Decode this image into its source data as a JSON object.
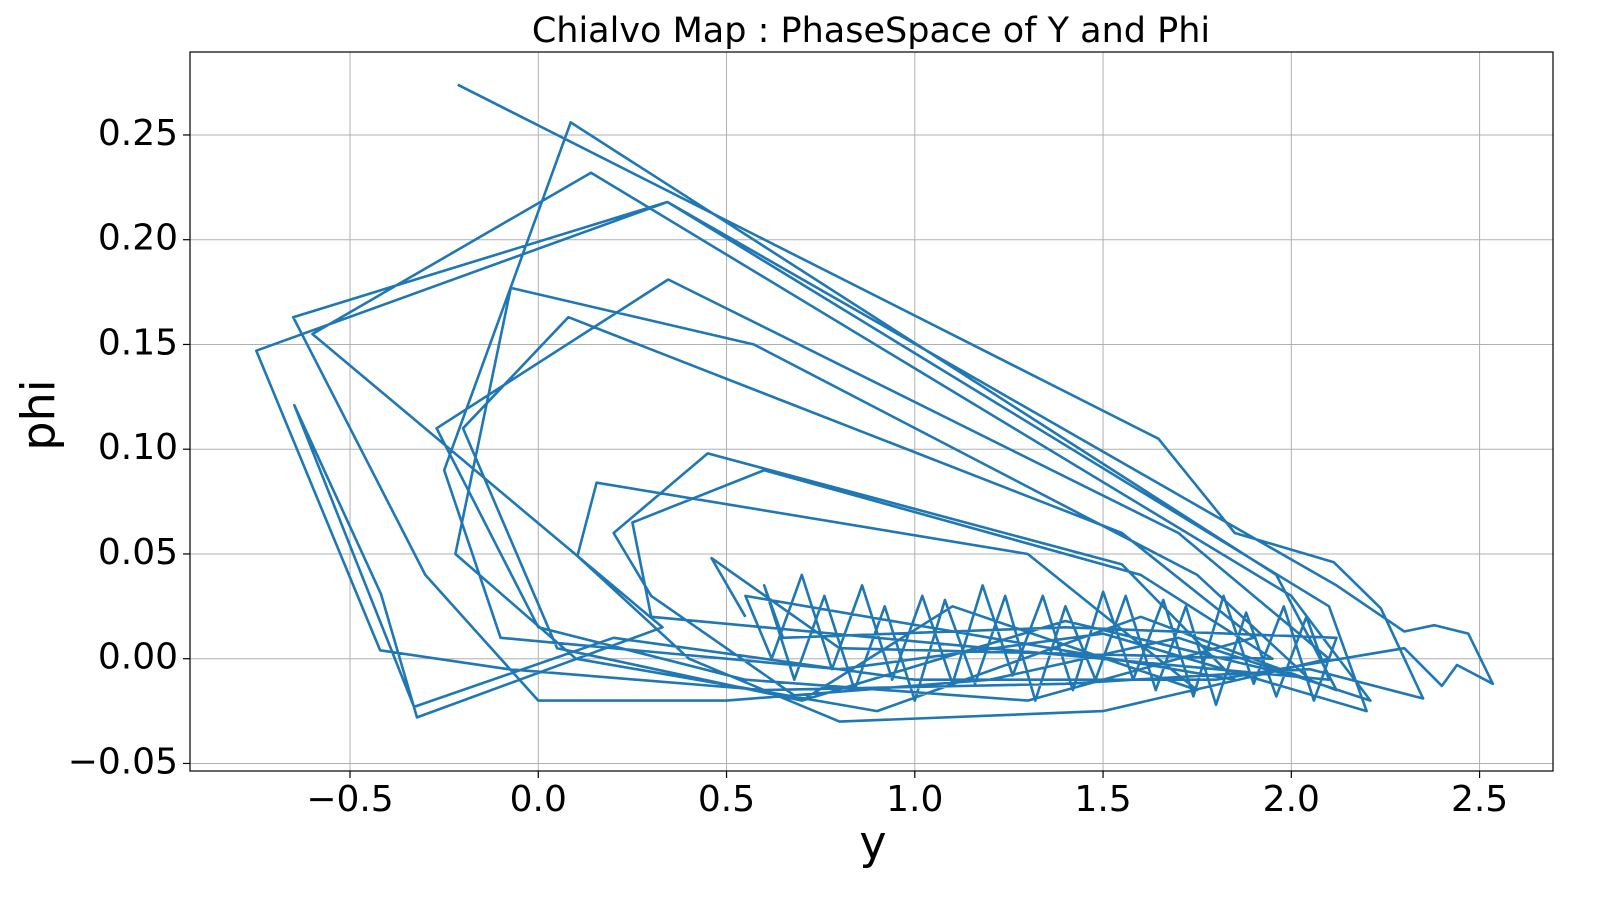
{
  "chart_data": {
    "type": "line",
    "title": "Chialvo Map : PhaseSpace of Y and Phi",
    "x_label": "y",
    "y_label": "phi",
    "xlim": [
      -0.925,
      2.695
    ],
    "ylim": [
      -0.0536,
      0.2896
    ],
    "xticks": [
      {
        "value": -0.5,
        "label": "−0.5"
      },
      {
        "value": 0,
        "label": "0.0"
      },
      0.5,
      {
        "value": 1,
        "label": "1.0"
      },
      1.5,
      {
        "value": 2,
        "label": "2.0"
      },
      2.5
    ],
    "yticks": [
      {
        "value": -0.05,
        "label": "−0.05"
      },
      {
        "value": 0,
        "label": "0.00"
      },
      0.05,
      {
        "value": 0.1,
        "label": "0.10"
      },
      0.15,
      {
        "value": 0.2,
        "label": "0.20"
      },
      0.25
    ],
    "grid": true,
    "series": [
      {
        "color": "#1f77b4",
        "x": [
          -0.214,
          1.647,
          1.85,
          2.113,
          2.238,
          2.35,
          2.05,
          1.4,
          0.6,
          -0.08,
          -0.42,
          -0.749,
          0.343,
          2.12,
          2.3,
          2.38,
          2.47,
          2.535,
          2.44,
          2.4,
          2.3,
          1.8,
          1.0,
          0.2,
          -0.33,
          -0.648,
          -0.418,
          -0.322,
          0.33,
          -0.6,
          0.14,
          2.0,
          2.21,
          1.7,
          1.2,
          0.5,
          0.0,
          -0.3,
          -0.651,
          0.343,
          2.1,
          2.2,
          1.5,
          0.8,
          -0.1,
          -0.25,
          0.086,
          1.96,
          2.12,
          1.6,
          0.9,
          0.1,
          -0.22,
          -0.073,
          0.573,
          1.75,
          2.05,
          1.4,
          0.7,
          0.05,
          -0.2,
          0.08,
          1.55,
          1.9,
          1.3,
          0.55,
          0.0,
          -0.27,
          0.345,
          1.7,
          2.1,
          1.5,
          0.8,
          0.4,
          0.104,
          0.155,
          1.3,
          1.75,
          1.1,
          0.7,
          0.3,
          0.2,
          0.45,
          1.55,
          1.85,
          0.55,
          0.62,
          0.7,
          0.78,
          0.86,
          0.94,
          1.02,
          1.1,
          1.18,
          1.26,
          1.34,
          1.42,
          1.5,
          1.58,
          1.66,
          1.74,
          1.82,
          1.9,
          1.98,
          2.06,
          2.12,
          1.4,
          0.65,
          0.6,
          0.68,
          0.76,
          0.84,
          0.92,
          1.0,
          1.08,
          1.16,
          1.24,
          1.32,
          1.4,
          1.48,
          1.56,
          1.64,
          1.72,
          1.8,
          1.88,
          1.96,
          2.04,
          2.1,
          0.9,
          0.3,
          0.25,
          0.6,
          1.6,
          1.95,
          0.8,
          0.46,
          0.55
        ],
        "values": [
          0.274,
          0.105,
          0.06,
          0.046,
          0.024,
          -0.019,
          -0.005,
          -0.012,
          -0.015,
          -0.005,
          0.004,
          0.147,
          0.218,
          0.035,
          0.013,
          0.016,
          0.012,
          -0.012,
          -0.003,
          -0.013,
          0.005,
          -0.01,
          -0.01,
          0.01,
          -0.023,
          0.121,
          0.031,
          -0.028,
          0.015,
          0.155,
          0.232,
          0.03,
          -0.02,
          0.01,
          -0.01,
          -0.02,
          -0.02,
          0.04,
          0.163,
          0.218,
          0.025,
          -0.025,
          0.012,
          -0.005,
          0.01,
          0.09,
          0.256,
          0.04,
          -0.015,
          0.02,
          -0.025,
          0.0,
          0.05,
          0.177,
          0.15,
          0.04,
          -0.01,
          0.018,
          -0.02,
          0.005,
          0.11,
          0.163,
          0.06,
          0.01,
          -0.02,
          -0.01,
          0.015,
          0.11,
          0.181,
          0.06,
          0.0,
          -0.025,
          -0.03,
          0.0,
          0.049,
          0.084,
          0.05,
          -0.015,
          0.025,
          -0.02,
          0.03,
          0.06,
          0.098,
          0.045,
          -0.01,
          0.03,
          0.0,
          0.04,
          -0.005,
          0.035,
          -0.01,
          0.03,
          -0.012,
          0.035,
          -0.008,
          0.03,
          -0.015,
          0.032,
          -0.01,
          0.028,
          -0.018,
          0.03,
          -0.012,
          0.025,
          -0.02,
          0.01,
          0.015,
          0.01,
          0.035,
          -0.01,
          0.03,
          -0.015,
          0.025,
          -0.02,
          0.028,
          -0.012,
          0.03,
          -0.02,
          0.025,
          -0.01,
          0.03,
          -0.015,
          0.025,
          -0.022,
          0.022,
          -0.018,
          0.02,
          -0.01,
          0.01,
          0.02,
          0.065,
          0.09,
          0.04,
          0.0,
          0.005,
          0.048,
          0.02
        ]
      }
    ]
  }
}
